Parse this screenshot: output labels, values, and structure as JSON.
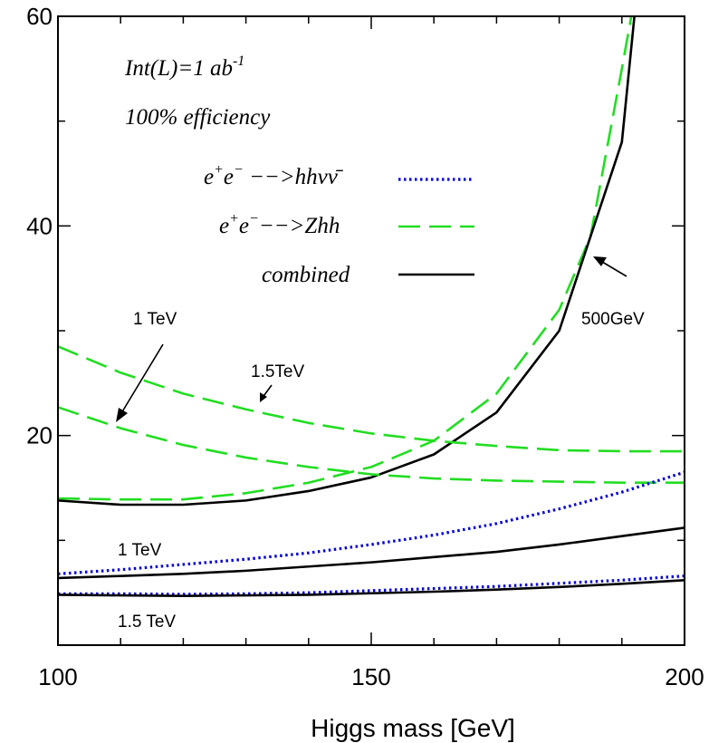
{
  "chart_data": {
    "type": "line",
    "xlabel": "Higgs mass [GeV]",
    "ylabel": "",
    "xlim": [
      100,
      200
    ],
    "ylim": [
      0,
      60
    ],
    "x_ticks": [
      100,
      150,
      200
    ],
    "y_ticks": [
      20,
      40,
      60
    ],
    "grid": false,
    "legend_position": "top-center",
    "annotations": {
      "lumi_prefix": "Int(L)=1 ab",
      "lumi_sup": "-1",
      "efficiency": "100% efficiency"
    },
    "legend": [
      {
        "label_parts": [
          "e",
          "+",
          "e",
          "−",
          " −−>hhνν̄"
        ],
        "style": "dotted",
        "color": "#0000dd"
      },
      {
        "label_parts": [
          "e",
          "+",
          "e",
          "−",
          "−−>Zhh"
        ],
        "style": "dashed",
        "color": "#22dd22"
      },
      {
        "label_parts": [
          "combined"
        ],
        "style": "solid",
        "color": "#000000"
      }
    ],
    "curve_labels": {
      "tev1_upper": "1 TeV",
      "tev15_upper": "1.5TeV",
      "gev500": "500GeV",
      "tev1_lower": "1 TeV",
      "tev15_lower": "1.5 TeV"
    },
    "series": [
      {
        "id": "zhh_500",
        "style": "dashed",
        "color": "#22dd22",
        "x": [
          100,
          110,
          120,
          130,
          140,
          150,
          160,
          170,
          180,
          185,
          190,
          191.5
        ],
        "y": [
          14.0,
          13.9,
          13.9,
          14.5,
          15.5,
          17.0,
          19.5,
          24.0,
          32.0,
          39.0,
          55.0,
          60.0
        ]
      },
      {
        "id": "combined_500",
        "style": "solid",
        "color": "#000000",
        "x": [
          100,
          110,
          120,
          130,
          140,
          150,
          160,
          170,
          180,
          190,
          192
        ],
        "y": [
          13.8,
          13.4,
          13.4,
          13.8,
          14.7,
          16.0,
          18.2,
          22.2,
          30.0,
          48.0,
          60.0
        ]
      },
      {
        "id": "zhh_1tev",
        "style": "dashed",
        "color": "#22dd22",
        "x": [
          100,
          110,
          120,
          130,
          140,
          150,
          160,
          170,
          180,
          190,
          200
        ],
        "y": [
          22.7,
          20.7,
          19.1,
          17.9,
          17.0,
          16.3,
          15.9,
          15.7,
          15.6,
          15.5,
          15.5
        ]
      },
      {
        "id": "zhh_15tev",
        "style": "dashed",
        "color": "#22dd22",
        "x": [
          100,
          110,
          120,
          130,
          140,
          150,
          160,
          170,
          180,
          190,
          200
        ],
        "y": [
          28.5,
          26.0,
          24.0,
          22.5,
          21.2,
          20.2,
          19.5,
          19.0,
          18.6,
          18.5,
          18.5
        ]
      },
      {
        "id": "hhvv_1tev",
        "style": "dotted",
        "color": "#0000dd",
        "x": [
          100,
          110,
          120,
          130,
          140,
          150,
          160,
          170,
          180,
          190,
          200
        ],
        "y": [
          6.8,
          7.2,
          7.7,
          8.2,
          8.8,
          9.6,
          10.5,
          11.6,
          13.0,
          14.6,
          16.5
        ]
      },
      {
        "id": "combined_1tev",
        "style": "solid",
        "color": "#000000",
        "x": [
          100,
          110,
          120,
          130,
          140,
          150,
          160,
          170,
          180,
          190,
          200
        ],
        "y": [
          6.4,
          6.6,
          6.8,
          7.1,
          7.5,
          7.9,
          8.4,
          8.9,
          9.6,
          10.4,
          11.2
        ]
      },
      {
        "id": "hhvv_15tev",
        "style": "dotted",
        "color": "#0000dd",
        "x": [
          100,
          110,
          120,
          130,
          140,
          150,
          160,
          170,
          180,
          190,
          200
        ],
        "y": [
          4.9,
          4.9,
          4.85,
          4.9,
          5.0,
          5.2,
          5.4,
          5.6,
          5.9,
          6.2,
          6.6
        ]
      },
      {
        "id": "combined_15tev",
        "style": "solid",
        "color": "#000000",
        "x": [
          100,
          110,
          120,
          130,
          140,
          150,
          160,
          170,
          180,
          190,
          200
        ],
        "y": [
          4.8,
          4.75,
          4.7,
          4.75,
          4.8,
          4.95,
          5.1,
          5.3,
          5.55,
          5.85,
          6.2
        ]
      }
    ]
  }
}
